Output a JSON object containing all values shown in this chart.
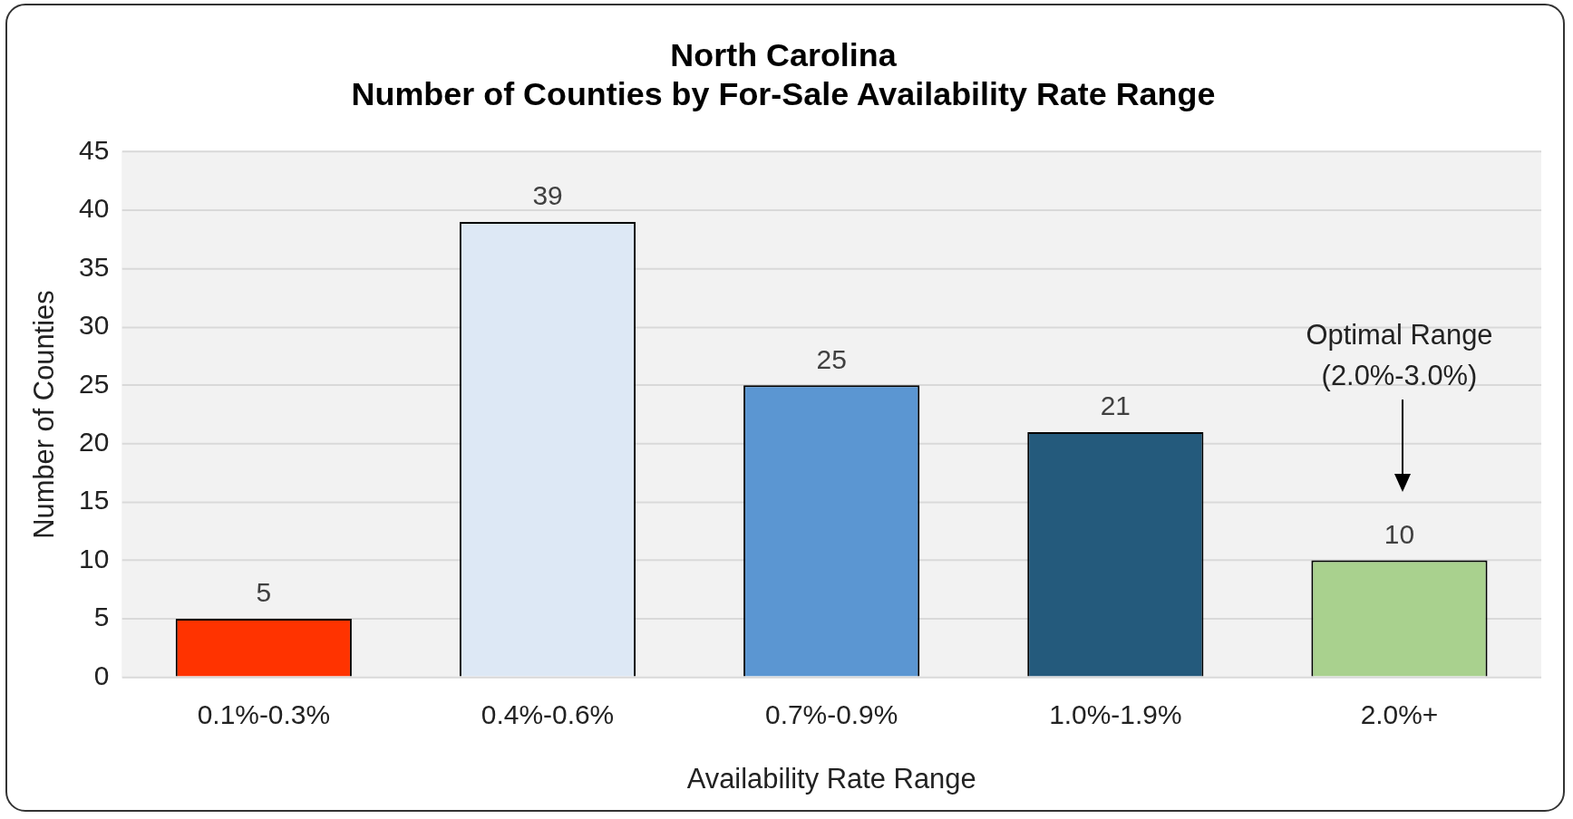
{
  "chart_data": {
    "type": "bar",
    "title": "North Carolina\nNumber of Counties by For-Sale Availability Rate Range",
    "categories": [
      "0.1%-0.3%",
      "0.4%-0.6%",
      "0.7%-0.9%",
      "1.0%-1.9%",
      "2.0%+"
    ],
    "values": [
      5,
      39,
      25,
      21,
      10
    ],
    "colors": [
      "#ff3300",
      "#dde8f5",
      "#5b96d2",
      "#245a7c",
      "#a9d18e"
    ],
    "xlabel": "Availability Rate Range",
    "ylabel": "Number of Counties",
    "ylim": [
      0,
      45
    ],
    "yticks": [
      0,
      5,
      10,
      15,
      20,
      25,
      30,
      35,
      40,
      45
    ],
    "grid": "y",
    "legend": false,
    "data_labels": true,
    "annotations": [
      "Optimal Range\n(2.0%-3.0%)"
    ]
  }
}
